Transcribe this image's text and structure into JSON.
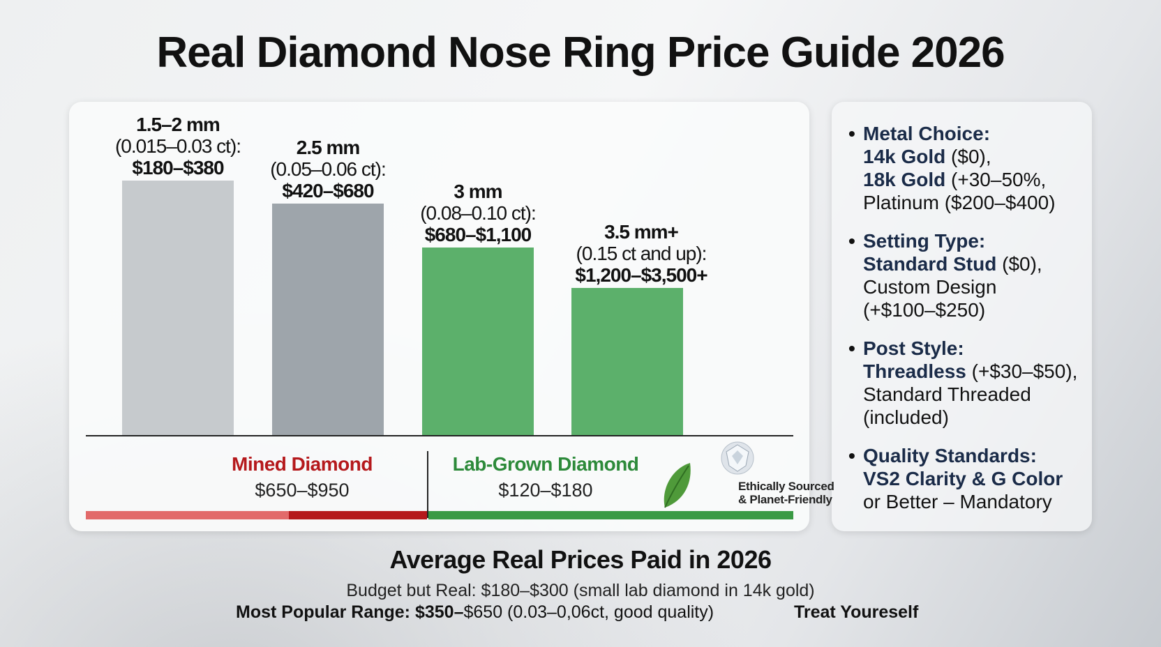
{
  "title": "Real Diamond Nose Ring Price Guide 2026",
  "colors": {
    "bar_gray_light": "#c6cacd",
    "bar_gray_dark": "#9ea5ab",
    "bar_green": "#5cb06b",
    "mined_red": "#b5191c",
    "lab_green": "#2d8a3a",
    "navy": "#1a2b48"
  },
  "chart_data": {
    "type": "bar",
    "categories": [
      "1.5–2 mm",
      "2.5 mm",
      "3 mm",
      "3.5 mm+"
    ],
    "carats": [
      "(0.015–0.03 ct):",
      "(0.05–0.06 ct):",
      "(0.08–0.10 ct):",
      "(0.15 ct and up):"
    ],
    "price_labels": [
      "$180–$380",
      "$420–$680",
      "$680–$1,100",
      "$1,200–$3,500+"
    ],
    "price_ranges": [
      [
        180,
        380
      ],
      [
        420,
        680
      ],
      [
        680,
        1100
      ],
      [
        1200,
        3500
      ]
    ],
    "bar_colors": [
      "#c6cacd",
      "#9ea5ab",
      "#5cb06b",
      "#5cb06b"
    ],
    "grid": false,
    "legend": "none"
  },
  "comparison": {
    "mined": {
      "label": "Mined Diamond",
      "price": "$650–$950"
    },
    "lab": {
      "label": "Lab-Grown Diamond",
      "price": "$120–$180"
    },
    "eco_badge": [
      "Ethically Sourced",
      "& Planet-Friendly"
    ]
  },
  "options": [
    {
      "heading": "Metal Choice:",
      "lines": [
        [
          "14k Gold",
          " ($0),"
        ],
        [
          "18k Gold",
          " (+30–50%,"
        ],
        [
          "",
          "Platinum ($200–$400)"
        ]
      ]
    },
    {
      "heading": "Setting Type:",
      "lines": [
        [
          "Standard Stud",
          " ($0),"
        ],
        [
          "",
          "Custom Design"
        ],
        [
          "",
          "(+$100–$250)"
        ]
      ]
    },
    {
      "heading": "Post Style:",
      "lines": [
        [
          "Threadless",
          " (+$30–$50),"
        ],
        [
          "",
          "Standard Threaded (included)"
        ]
      ]
    },
    {
      "heading": "Quality Standards:",
      "lines": [
        [
          "VS2 Clarity & G Color",
          ""
        ],
        [
          "",
          "or Better – Mandatory"
        ]
      ]
    }
  ],
  "bottom": {
    "heading": "Average Real Prices Paid in 2026",
    "budget": "Budget but Real: $180–$300 (small lab diamond in 14k gold)",
    "popular_label": "Most Popular Range: $350–",
    "popular_rest": "$650 (0.03–0,06ct, good quality)",
    "treat": "Treat Youreself"
  }
}
